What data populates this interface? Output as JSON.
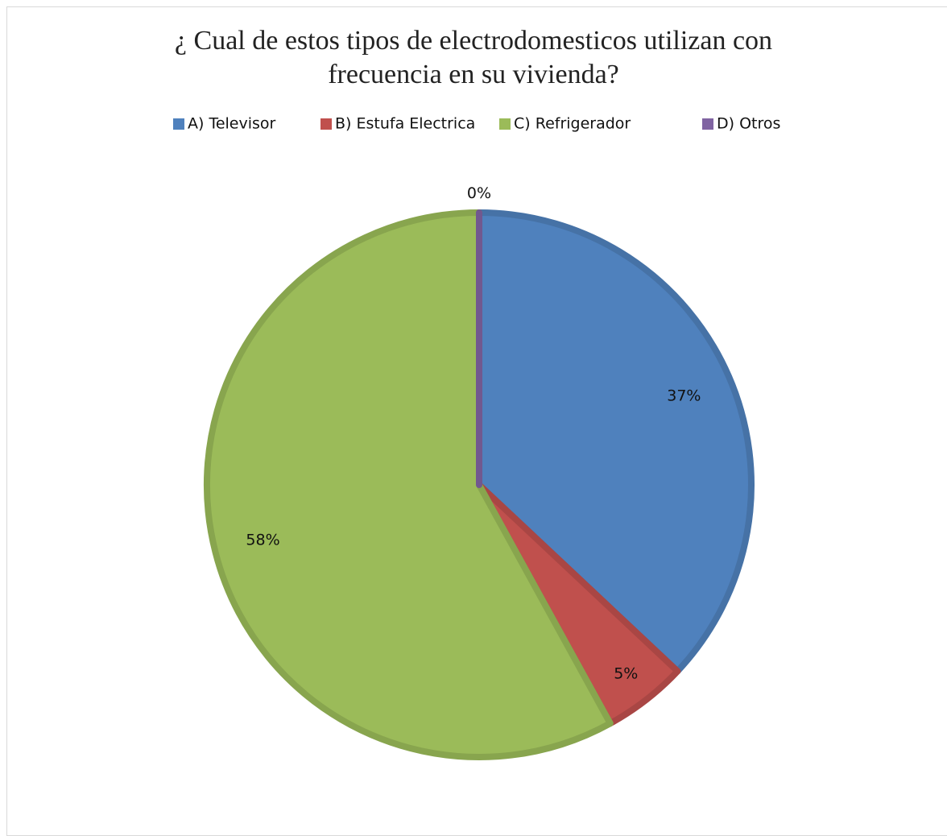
{
  "chart_data": {
    "type": "pie",
    "title": "¿ Cual de estos tipos de electrodomesticos utilizan con frecuencia en su vivienda?",
    "categories": [
      "A) Televisor",
      "B) Estufa Electrica",
      "C) Refrigerador",
      "D) Otros"
    ],
    "values": [
      37,
      5,
      58,
      0
    ],
    "value_labels": [
      "37%",
      "5%",
      "58%",
      "0%"
    ],
    "colors": [
      "#4f81bd",
      "#c0504d",
      "#9bbb59",
      "#8064a2"
    ],
    "legend": "top"
  }
}
